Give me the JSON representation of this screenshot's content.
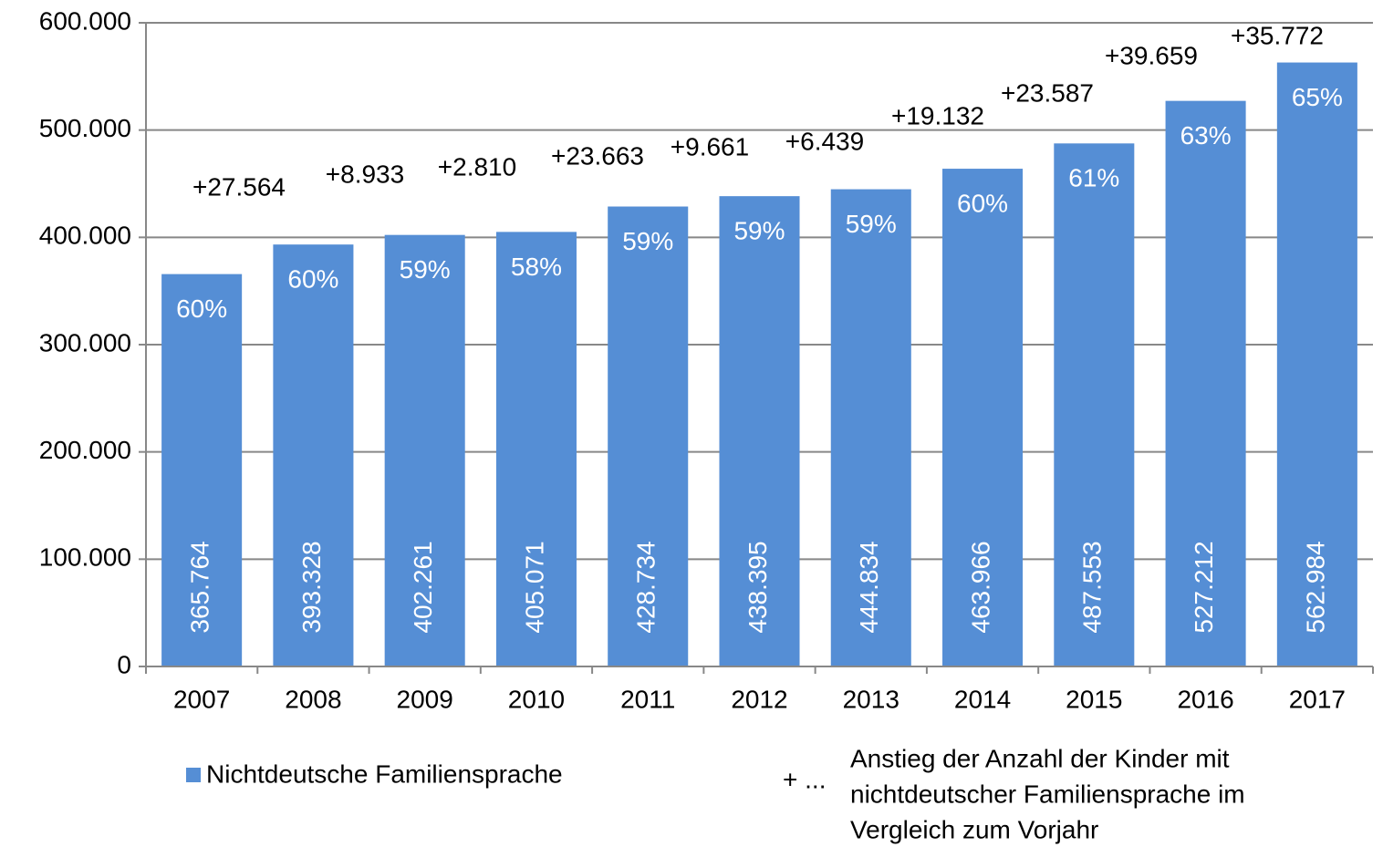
{
  "chart_data": {
    "type": "bar",
    "categories": [
      "2007",
      "2008",
      "2009",
      "2010",
      "2011",
      "2012",
      "2013",
      "2014",
      "2015",
      "2016",
      "2017"
    ],
    "series": [
      {
        "name": "Nichtdeutsche Familiensprache",
        "color": "#558ed5",
        "values": [
          365764,
          393328,
          402261,
          405071,
          428734,
          438395,
          444834,
          463966,
          487553,
          527212,
          562984
        ],
        "value_labels": [
          "365.764",
          "393.328",
          "402.261",
          "405.071",
          "428.734",
          "438.395",
          "444.834",
          "463.966",
          "487.553",
          "527.212",
          "562.984"
        ]
      }
    ],
    "shares": [
      60,
      60,
      59,
      58,
      59,
      59,
      59,
      60,
      61,
      63,
      65
    ],
    "share_labels": [
      "60%",
      "60%",
      "59%",
      "58%",
      "59%",
      "59%",
      "59%",
      "60%",
      "61%",
      "63%",
      "65%"
    ],
    "increases": [
      null,
      27564,
      8933,
      2810,
      23663,
      9661,
      6439,
      19132,
      23587,
      39659,
      35772
    ],
    "increase_labels": [
      null,
      "+27.564",
      "+8.933",
      "+2.810",
      "+23.663",
      "+9.661",
      "+6.439",
      "+19.132",
      "+23.587",
      "+39.659",
      "+35.772"
    ],
    "legend_note": {
      "symbol": "+ ...",
      "lines": [
        "Anstieg der Anzahl der Kinder mit",
        "nichtdeutscher Familiensprache im",
        "Vergleich zum Vorjahr"
      ]
    },
    "ylim": [
      0,
      600000
    ],
    "yticks": [
      0,
      {
        "value": 100000,
        "label": "100.000"
      },
      {
        "value": 200000,
        "label": "200.000"
      },
      {
        "value": 300000,
        "label": "300.000"
      },
      {
        "value": 400000,
        "label": "400.000"
      },
      {
        "value": 500000,
        "label": "500.000"
      },
      {
        "value": 600000,
        "label": "600.000"
      }
    ],
    "grid": true
  }
}
